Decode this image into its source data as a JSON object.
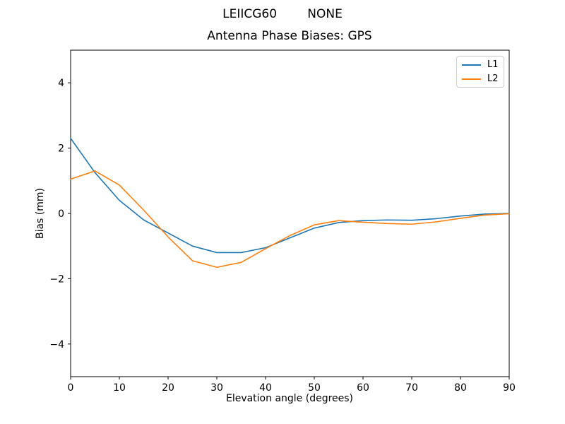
{
  "figure": {
    "suptitle": "LEIICG60        NONE",
    "background": "#ffffff"
  },
  "chart_data": {
    "type": "line",
    "title": "Antenna Phase Biases: GPS",
    "xlabel": "Elevation angle (degrees)",
    "ylabel": "Bias (mm)",
    "xlim": [
      0,
      90
    ],
    "ylim": [
      -5,
      5
    ],
    "xticks": [
      0,
      10,
      20,
      30,
      40,
      50,
      60,
      70,
      80,
      90
    ],
    "xtick_labels": [
      "0",
      "10",
      "20",
      "30",
      "40",
      "50",
      "60",
      "70",
      "80",
      "90"
    ],
    "yticks": [
      -4,
      -2,
      0,
      2,
      4
    ],
    "ytick_labels": [
      "−4",
      "−2",
      "0",
      "2",
      "4"
    ],
    "grid": false,
    "legend": {
      "position": "upper right",
      "entries": [
        "L1",
        "L2"
      ]
    },
    "x": [
      0,
      5,
      10,
      15,
      20,
      25,
      30,
      35,
      40,
      45,
      50,
      55,
      60,
      65,
      70,
      75,
      80,
      85,
      90
    ],
    "series": [
      {
        "name": "L1",
        "color": "#1f77b4",
        "values": [
          2.3,
          1.25,
          0.4,
          -0.2,
          -0.6,
          -1.0,
          -1.2,
          -1.2,
          -1.05,
          -0.75,
          -0.45,
          -0.28,
          -0.22,
          -0.2,
          -0.21,
          -0.16,
          -0.08,
          -0.02,
          0.0
        ]
      },
      {
        "name": "L2",
        "color": "#ff7f0e",
        "values": [
          1.05,
          1.3,
          0.87,
          0.1,
          -0.72,
          -1.45,
          -1.65,
          -1.5,
          -1.08,
          -0.68,
          -0.35,
          -0.22,
          -0.27,
          -0.31,
          -0.33,
          -0.26,
          -0.15,
          -0.05,
          -0.01
        ]
      }
    ]
  }
}
